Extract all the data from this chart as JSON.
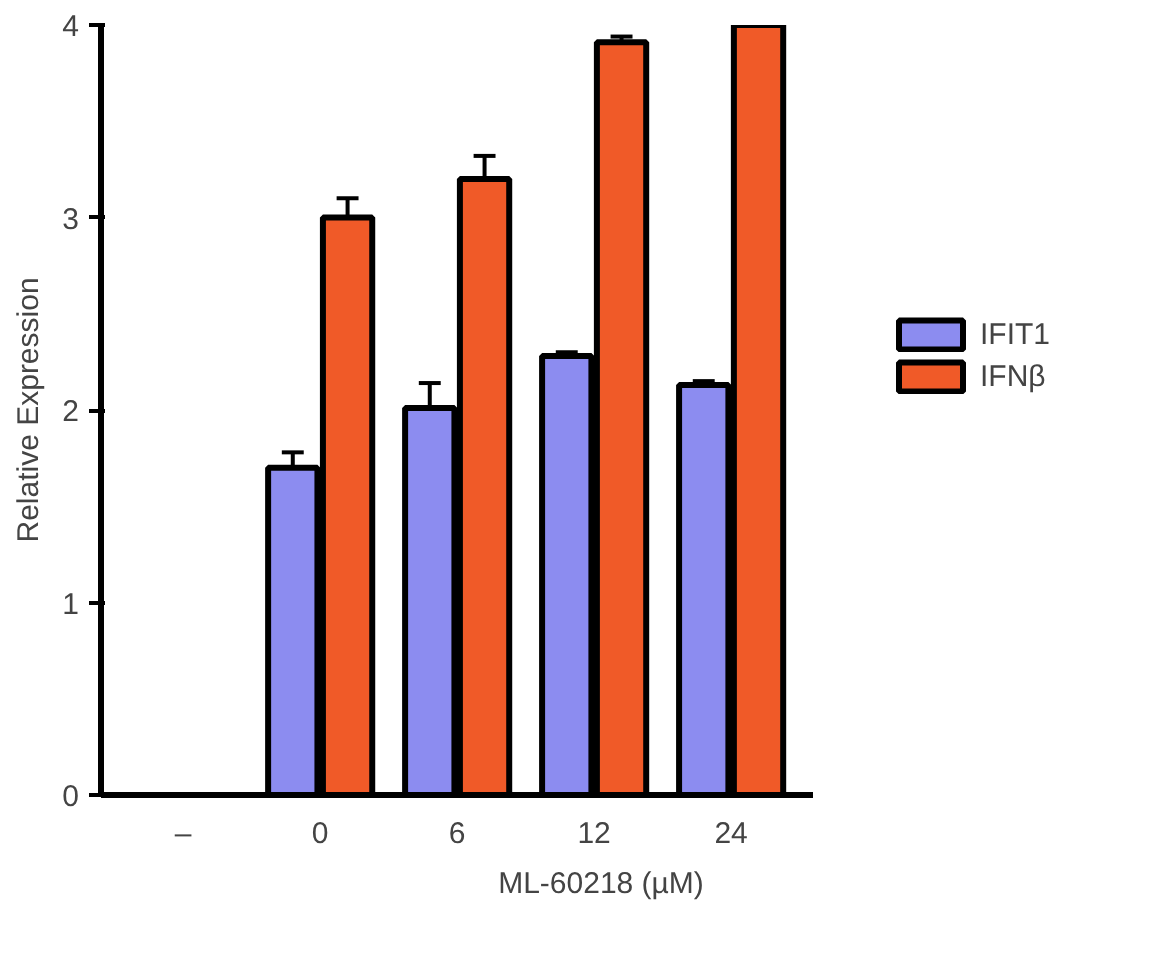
{
  "chart_data": {
    "type": "bar",
    "ylabel": "Relative Expression",
    "categories": [
      "–",
      "0",
      "6",
      "12",
      "24"
    ],
    "series": [
      {
        "name": "IFIT1",
        "color": "#8c8cf0",
        "values": [
          null,
          1.7,
          2.01,
          2.28,
          2.13
        ],
        "errors": [
          null,
          0.08,
          0.13,
          0.02,
          0.02
        ]
      },
      {
        "name": "IFNβ",
        "color": "#f05a28",
        "values": [
          null,
          3.0,
          3.2,
          3.91,
          4.0
        ],
        "errors": [
          null,
          0.1,
          0.12,
          0.03,
          0.02
        ]
      }
    ],
    "ylim": [
      0,
      4
    ],
    "yticks": [
      0,
      1,
      2,
      3,
      4
    ],
    "grid": false,
    "legend": "right",
    "xlabel": "ML-60218 (µM)"
  }
}
